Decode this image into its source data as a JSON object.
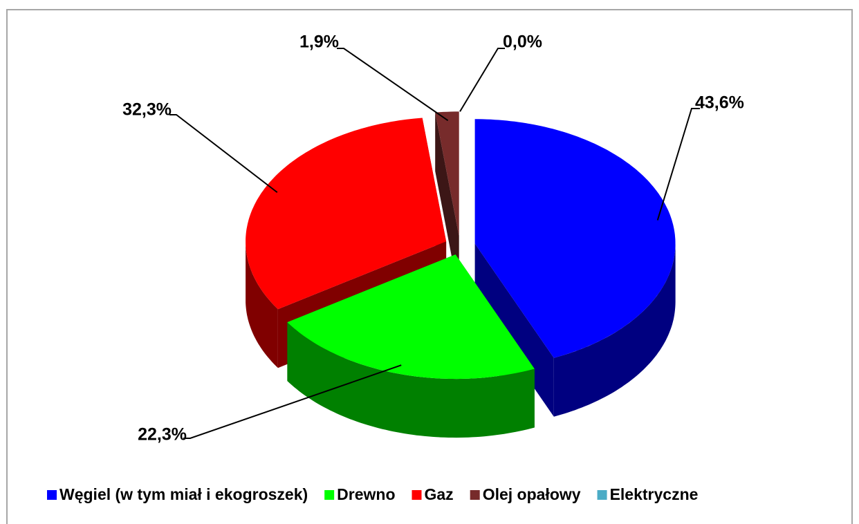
{
  "chart_data": {
    "type": "pie3d",
    "categories": [
      "Węgiel (w tym miał i ekogroszek)",
      "Drewno",
      "Gaz",
      "Olej opałowy",
      "Elektryczne"
    ],
    "values": [
      43.6,
      22.3,
      32.3,
      1.9,
      0.0
    ],
    "value_labels": [
      "43,6%",
      "22,3%",
      "32,3%",
      "1,9%",
      "0,0%"
    ],
    "colors": [
      "#0000ff",
      "#00ff00",
      "#ff0000",
      "#772b2b",
      "#4bacc6"
    ],
    "legend": "bottom"
  }
}
